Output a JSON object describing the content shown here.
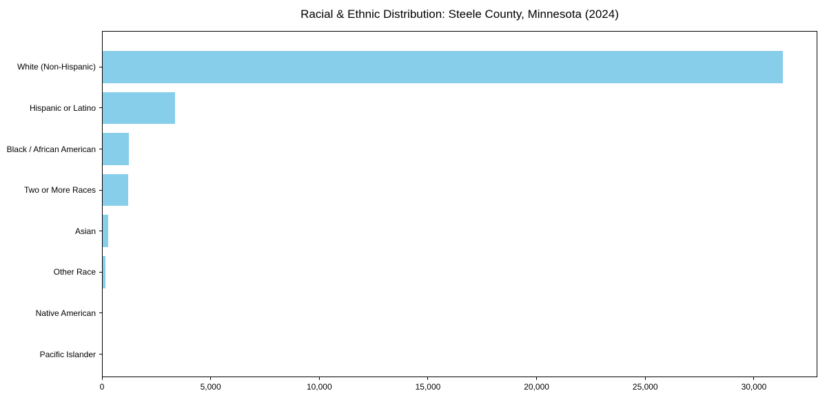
{
  "chart_data": {
    "type": "bar",
    "orientation": "horizontal",
    "title": "Racial & Ethnic Distribution: Steele County, Minnesota (2024)",
    "categories": [
      "White (Non-Hispanic)",
      "Hispanic or Latino",
      "Black / African American",
      "Two or More Races",
      "Asian",
      "Other Race",
      "Native American",
      "Pacific Islander"
    ],
    "values": [
      31350,
      3360,
      1230,
      1200,
      270,
      160,
      40,
      10
    ],
    "bar_color": "#87CEEB",
    "axis_color": "#000000",
    "text_color": "#000000",
    "background_color": "#FFFFFF",
    "xlabel": "",
    "ylabel": "",
    "xlim": [
      0,
      32920
    ],
    "x_ticks": [
      0,
      5000,
      10000,
      15000,
      20000,
      25000,
      30000
    ],
    "x_tick_labels": [
      "0",
      "5,000",
      "10,000",
      "15,000",
      "20,000",
      "25,000",
      "30,000"
    ],
    "grid": false,
    "legend_position": "none"
  }
}
